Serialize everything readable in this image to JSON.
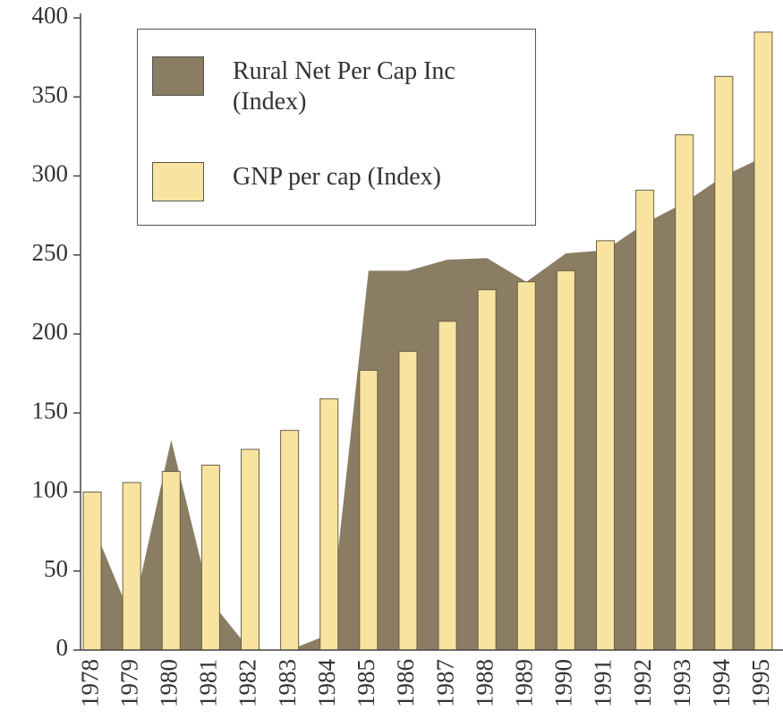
{
  "chart_data": {
    "type": "area-bar",
    "categories": [
      "1978",
      "1979",
      "1980",
      "1981",
      "1982",
      "1983",
      "1984",
      "1985",
      "1986",
      "1987",
      "1988",
      "1989",
      "1990",
      "1991",
      "1992",
      "1993",
      "1994",
      "1995"
    ],
    "series": [
      {
        "name": "Rural Net Per Cap Inc (Index)",
        "type": "area",
        "color": "#8a7d63",
        "values": [
          80,
          20,
          133,
          31,
          0,
          0,
          10,
          240,
          240,
          247,
          248,
          233,
          251,
          253,
          270,
          283,
          300,
          312
        ]
      },
      {
        "name": "GNP per cap (Index)",
        "type": "bar",
        "color": "#f8e4a0",
        "values": [
          100,
          106,
          113,
          117,
          127,
          139,
          159,
          177,
          189,
          208,
          228,
          233,
          240,
          259,
          291,
          326,
          363,
          391
        ]
      }
    ],
    "ylim": [
      0,
      400
    ],
    "yticks": [
      0,
      50,
      100,
      150,
      200,
      250,
      300,
      350,
      400
    ]
  }
}
